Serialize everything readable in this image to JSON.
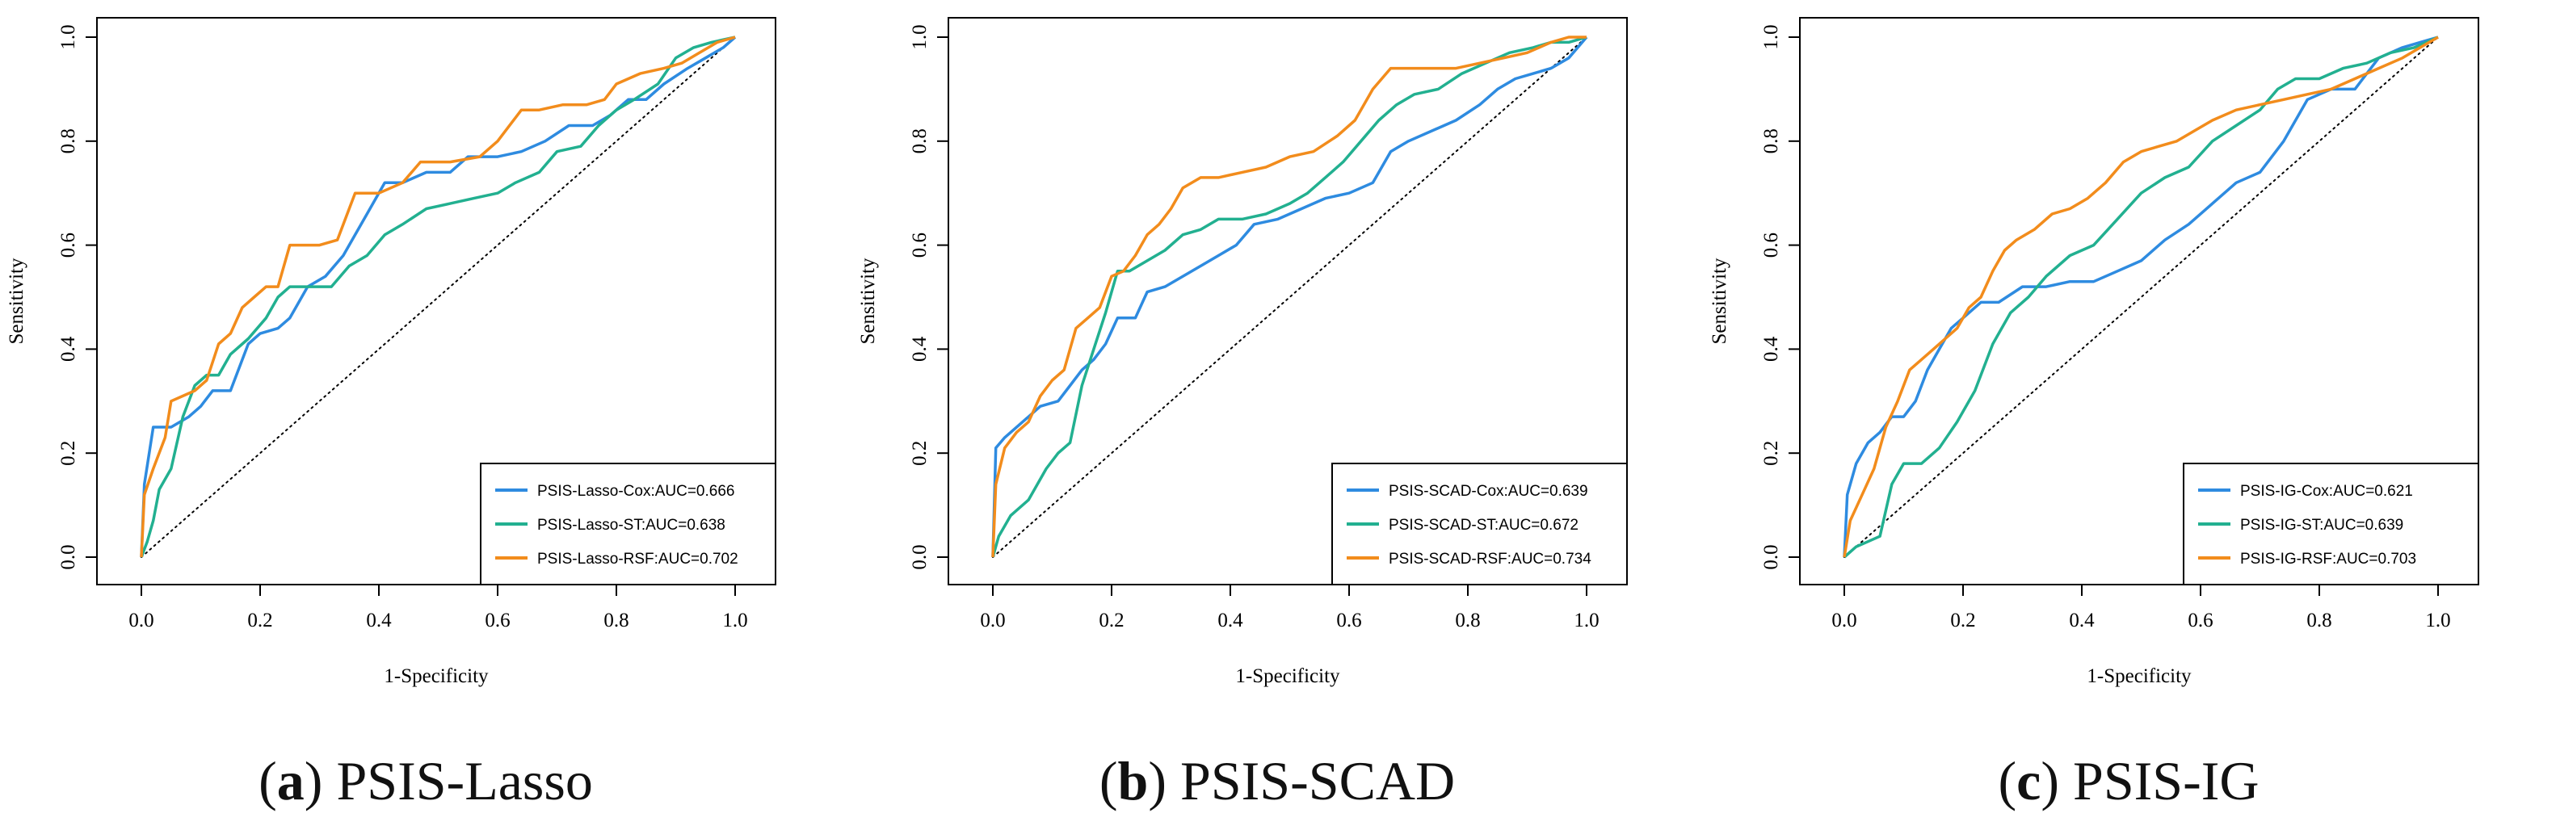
{
  "chart_data": [
    {
      "type": "line",
      "panel_letter": "a",
      "caption_text": "PSIS-Lasso",
      "xlabel": "1-Specificity",
      "ylabel": "Sensitivity",
      "xlim": [
        0,
        1
      ],
      "ylim": [
        0,
        1
      ],
      "xticks": [
        "0.0",
        "0.2",
        "0.4",
        "0.6",
        "0.8",
        "1.0"
      ],
      "yticks": [
        "0.0",
        "0.2",
        "0.4",
        "0.6",
        "0.8",
        "1.0"
      ],
      "grid": false,
      "legend_position": "bottom-right",
      "reference_line": "diagonal",
      "series": [
        {
          "name": "PSIS-Lasso-Cox:AUC=0.666",
          "color": "#2E8BE0",
          "x": [
            0,
            0.005,
            0.02,
            0.05,
            0.08,
            0.1,
            0.12,
            0.15,
            0.18,
            0.2,
            0.23,
            0.25,
            0.28,
            0.31,
            0.34,
            0.38,
            0.41,
            0.44,
            0.48,
            0.52,
            0.55,
            0.6,
            0.64,
            0.68,
            0.72,
            0.76,
            0.79,
            0.82,
            0.85,
            0.88,
            0.92,
            0.95,
            0.98,
            1.0
          ],
          "y": [
            0,
            0.14,
            0.25,
            0.25,
            0.27,
            0.29,
            0.32,
            0.32,
            0.41,
            0.43,
            0.44,
            0.46,
            0.52,
            0.54,
            0.58,
            0.66,
            0.72,
            0.72,
            0.74,
            0.74,
            0.77,
            0.77,
            0.78,
            0.8,
            0.83,
            0.83,
            0.85,
            0.88,
            0.88,
            0.91,
            0.94,
            0.96,
            0.98,
            1.0
          ]
        },
        {
          "name": "PSIS-Lasso-ST:AUC=0.638",
          "color": "#22B090",
          "x": [
            0,
            0.01,
            0.02,
            0.03,
            0.05,
            0.07,
            0.09,
            0.11,
            0.13,
            0.15,
            0.18,
            0.21,
            0.23,
            0.25,
            0.28,
            0.32,
            0.35,
            0.38,
            0.41,
            0.44,
            0.48,
            0.52,
            0.56,
            0.6,
            0.63,
            0.67,
            0.7,
            0.74,
            0.77,
            0.8,
            0.83,
            0.87,
            0.9,
            0.93,
            0.96,
            1.0
          ],
          "y": [
            0,
            0.03,
            0.07,
            0.13,
            0.17,
            0.27,
            0.33,
            0.35,
            0.35,
            0.39,
            0.42,
            0.46,
            0.5,
            0.52,
            0.52,
            0.52,
            0.56,
            0.58,
            0.62,
            0.64,
            0.67,
            0.68,
            0.69,
            0.7,
            0.72,
            0.74,
            0.78,
            0.79,
            0.83,
            0.86,
            0.88,
            0.91,
            0.96,
            0.98,
            0.99,
            1.0
          ]
        },
        {
          "name": "PSIS-Lasso-RSF:AUC=0.702",
          "color": "#F28C1C",
          "x": [
            0,
            0.005,
            0.02,
            0.04,
            0.05,
            0.07,
            0.09,
            0.11,
            0.13,
            0.15,
            0.17,
            0.19,
            0.21,
            0.23,
            0.25,
            0.28,
            0.3,
            0.33,
            0.36,
            0.4,
            0.44,
            0.47,
            0.52,
            0.57,
            0.6,
            0.64,
            0.67,
            0.71,
            0.75,
            0.78,
            0.8,
            0.84,
            0.88,
            0.91,
            0.94,
            0.97,
            1.0
          ],
          "y": [
            0,
            0.12,
            0.17,
            0.23,
            0.3,
            0.31,
            0.32,
            0.34,
            0.41,
            0.43,
            0.48,
            0.5,
            0.52,
            0.52,
            0.6,
            0.6,
            0.6,
            0.61,
            0.7,
            0.7,
            0.72,
            0.76,
            0.76,
            0.77,
            0.8,
            0.86,
            0.86,
            0.87,
            0.87,
            0.88,
            0.91,
            0.93,
            0.94,
            0.95,
            0.97,
            0.99,
            1.0
          ]
        }
      ]
    },
    {
      "type": "line",
      "panel_letter": "b",
      "caption_text": "PSIS-SCAD",
      "xlabel": "1-Specificity",
      "ylabel": "Sensitivity",
      "xlim": [
        0,
        1
      ],
      "ylim": [
        0,
        1
      ],
      "xticks": [
        "0.0",
        "0.2",
        "0.4",
        "0.6",
        "0.8",
        "1.0"
      ],
      "yticks": [
        "0.0",
        "0.2",
        "0.4",
        "0.6",
        "0.8",
        "1.0"
      ],
      "grid": false,
      "legend_position": "bottom-right",
      "reference_line": "diagonal",
      "series": [
        {
          "name": "PSIS-SCAD-Cox:AUC=0.639",
          "color": "#2E8BE0",
          "x": [
            0,
            0.005,
            0.02,
            0.05,
            0.08,
            0.11,
            0.13,
            0.15,
            0.17,
            0.19,
            0.21,
            0.24,
            0.26,
            0.29,
            0.32,
            0.35,
            0.38,
            0.41,
            0.44,
            0.48,
            0.52,
            0.56,
            0.6,
            0.64,
            0.67,
            0.7,
            0.74,
            0.78,
            0.82,
            0.85,
            0.88,
            0.91,
            0.94,
            0.97,
            1.0
          ],
          "y": [
            0,
            0.21,
            0.23,
            0.26,
            0.29,
            0.3,
            0.33,
            0.36,
            0.38,
            0.41,
            0.46,
            0.46,
            0.51,
            0.52,
            0.54,
            0.56,
            0.58,
            0.6,
            0.64,
            0.65,
            0.67,
            0.69,
            0.7,
            0.72,
            0.78,
            0.8,
            0.82,
            0.84,
            0.87,
            0.9,
            0.92,
            0.93,
            0.94,
            0.96,
            1.0
          ]
        },
        {
          "name": "PSIS-SCAD-ST:AUC=0.672",
          "color": "#22B090",
          "x": [
            0,
            0.01,
            0.03,
            0.06,
            0.09,
            0.11,
            0.13,
            0.15,
            0.17,
            0.19,
            0.21,
            0.23,
            0.26,
            0.29,
            0.32,
            0.35,
            0.38,
            0.42,
            0.46,
            0.5,
            0.53,
            0.56,
            0.59,
            0.62,
            0.65,
            0.68,
            0.71,
            0.75,
            0.79,
            0.83,
            0.87,
            0.91,
            0.94,
            0.97,
            1.0
          ],
          "y": [
            0,
            0.04,
            0.08,
            0.11,
            0.17,
            0.2,
            0.22,
            0.33,
            0.4,
            0.47,
            0.55,
            0.55,
            0.57,
            0.59,
            0.62,
            0.63,
            0.65,
            0.65,
            0.66,
            0.68,
            0.7,
            0.73,
            0.76,
            0.8,
            0.84,
            0.87,
            0.89,
            0.9,
            0.93,
            0.95,
            0.97,
            0.98,
            0.99,
            0.99,
            1.0
          ]
        },
        {
          "name": "PSIS-SCAD-RSF:AUC=0.734",
          "color": "#F28C1C",
          "x": [
            0,
            0.005,
            0.02,
            0.04,
            0.06,
            0.08,
            0.1,
            0.12,
            0.14,
            0.16,
            0.18,
            0.2,
            0.22,
            0.24,
            0.26,
            0.28,
            0.3,
            0.32,
            0.35,
            0.38,
            0.42,
            0.46,
            0.5,
            0.54,
            0.58,
            0.61,
            0.64,
            0.67,
            0.7,
            0.74,
            0.78,
            0.82,
            0.86,
            0.9,
            0.94,
            0.97,
            1.0
          ],
          "y": [
            0,
            0.14,
            0.21,
            0.24,
            0.26,
            0.31,
            0.34,
            0.36,
            0.44,
            0.46,
            0.48,
            0.54,
            0.55,
            0.58,
            0.62,
            0.64,
            0.67,
            0.71,
            0.73,
            0.73,
            0.74,
            0.75,
            0.77,
            0.78,
            0.81,
            0.84,
            0.9,
            0.94,
            0.94,
            0.94,
            0.94,
            0.95,
            0.96,
            0.97,
            0.99,
            1.0,
            1.0
          ]
        }
      ]
    },
    {
      "type": "line",
      "panel_letter": "c",
      "caption_text": "PSIS-IG",
      "xlabel": "1-Specificity",
      "ylabel": "Sensitivity",
      "xlim": [
        0,
        1
      ],
      "ylim": [
        0,
        1
      ],
      "xticks": [
        "0.0",
        "0.2",
        "0.4",
        "0.6",
        "0.8",
        "1.0"
      ],
      "yticks": [
        "0.0",
        "0.2",
        "0.4",
        "0.6",
        "0.8",
        "1.0"
      ],
      "grid": false,
      "legend_position": "bottom-right",
      "reference_line": "diagonal",
      "series": [
        {
          "name": "PSIS-IG-Cox:AUC=0.621",
          "color": "#2E8BE0",
          "x": [
            0,
            0.005,
            0.02,
            0.04,
            0.06,
            0.08,
            0.1,
            0.12,
            0.14,
            0.16,
            0.18,
            0.2,
            0.23,
            0.26,
            0.3,
            0.34,
            0.38,
            0.42,
            0.46,
            0.5,
            0.54,
            0.58,
            0.62,
            0.66,
            0.7,
            0.74,
            0.78,
            0.82,
            0.86,
            0.9,
            0.94,
            0.97,
            1.0
          ],
          "y": [
            0,
            0.12,
            0.18,
            0.22,
            0.24,
            0.27,
            0.27,
            0.3,
            0.36,
            0.4,
            0.44,
            0.46,
            0.49,
            0.49,
            0.52,
            0.52,
            0.53,
            0.53,
            0.55,
            0.57,
            0.61,
            0.64,
            0.68,
            0.72,
            0.74,
            0.8,
            0.88,
            0.9,
            0.9,
            0.96,
            0.98,
            0.99,
            1.0
          ]
        },
        {
          "name": "PSIS-IG-ST:AUC=0.639",
          "color": "#22B090",
          "x": [
            0,
            0.02,
            0.04,
            0.06,
            0.08,
            0.1,
            0.13,
            0.16,
            0.19,
            0.22,
            0.25,
            0.28,
            0.31,
            0.34,
            0.38,
            0.42,
            0.46,
            0.5,
            0.54,
            0.58,
            0.62,
            0.66,
            0.7,
            0.73,
            0.76,
            0.8,
            0.84,
            0.88,
            0.92,
            0.96,
            1.0
          ],
          "y": [
            0,
            0.02,
            0.03,
            0.04,
            0.14,
            0.18,
            0.18,
            0.21,
            0.26,
            0.32,
            0.41,
            0.47,
            0.5,
            0.54,
            0.58,
            0.6,
            0.65,
            0.7,
            0.73,
            0.75,
            0.8,
            0.83,
            0.86,
            0.9,
            0.92,
            0.92,
            0.94,
            0.95,
            0.97,
            0.98,
            1.0
          ]
        },
        {
          "name": "PSIS-IG-RSF:AUC=0.703",
          "color": "#F28C1C",
          "x": [
            0,
            0.01,
            0.03,
            0.05,
            0.07,
            0.09,
            0.11,
            0.13,
            0.15,
            0.17,
            0.19,
            0.21,
            0.23,
            0.25,
            0.27,
            0.29,
            0.32,
            0.35,
            0.38,
            0.41,
            0.44,
            0.47,
            0.5,
            0.53,
            0.56,
            0.59,
            0.62,
            0.66,
            0.7,
            0.74,
            0.78,
            0.82,
            0.86,
            0.9,
            0.94,
            0.97,
            1.0
          ],
          "y": [
            0,
            0.07,
            0.12,
            0.17,
            0.25,
            0.3,
            0.36,
            0.38,
            0.4,
            0.42,
            0.44,
            0.48,
            0.5,
            0.55,
            0.59,
            0.61,
            0.63,
            0.66,
            0.67,
            0.69,
            0.72,
            0.76,
            0.78,
            0.79,
            0.8,
            0.82,
            0.84,
            0.86,
            0.87,
            0.88,
            0.89,
            0.9,
            0.92,
            0.94,
            0.96,
            0.98,
            1.0
          ]
        }
      ]
    }
  ]
}
